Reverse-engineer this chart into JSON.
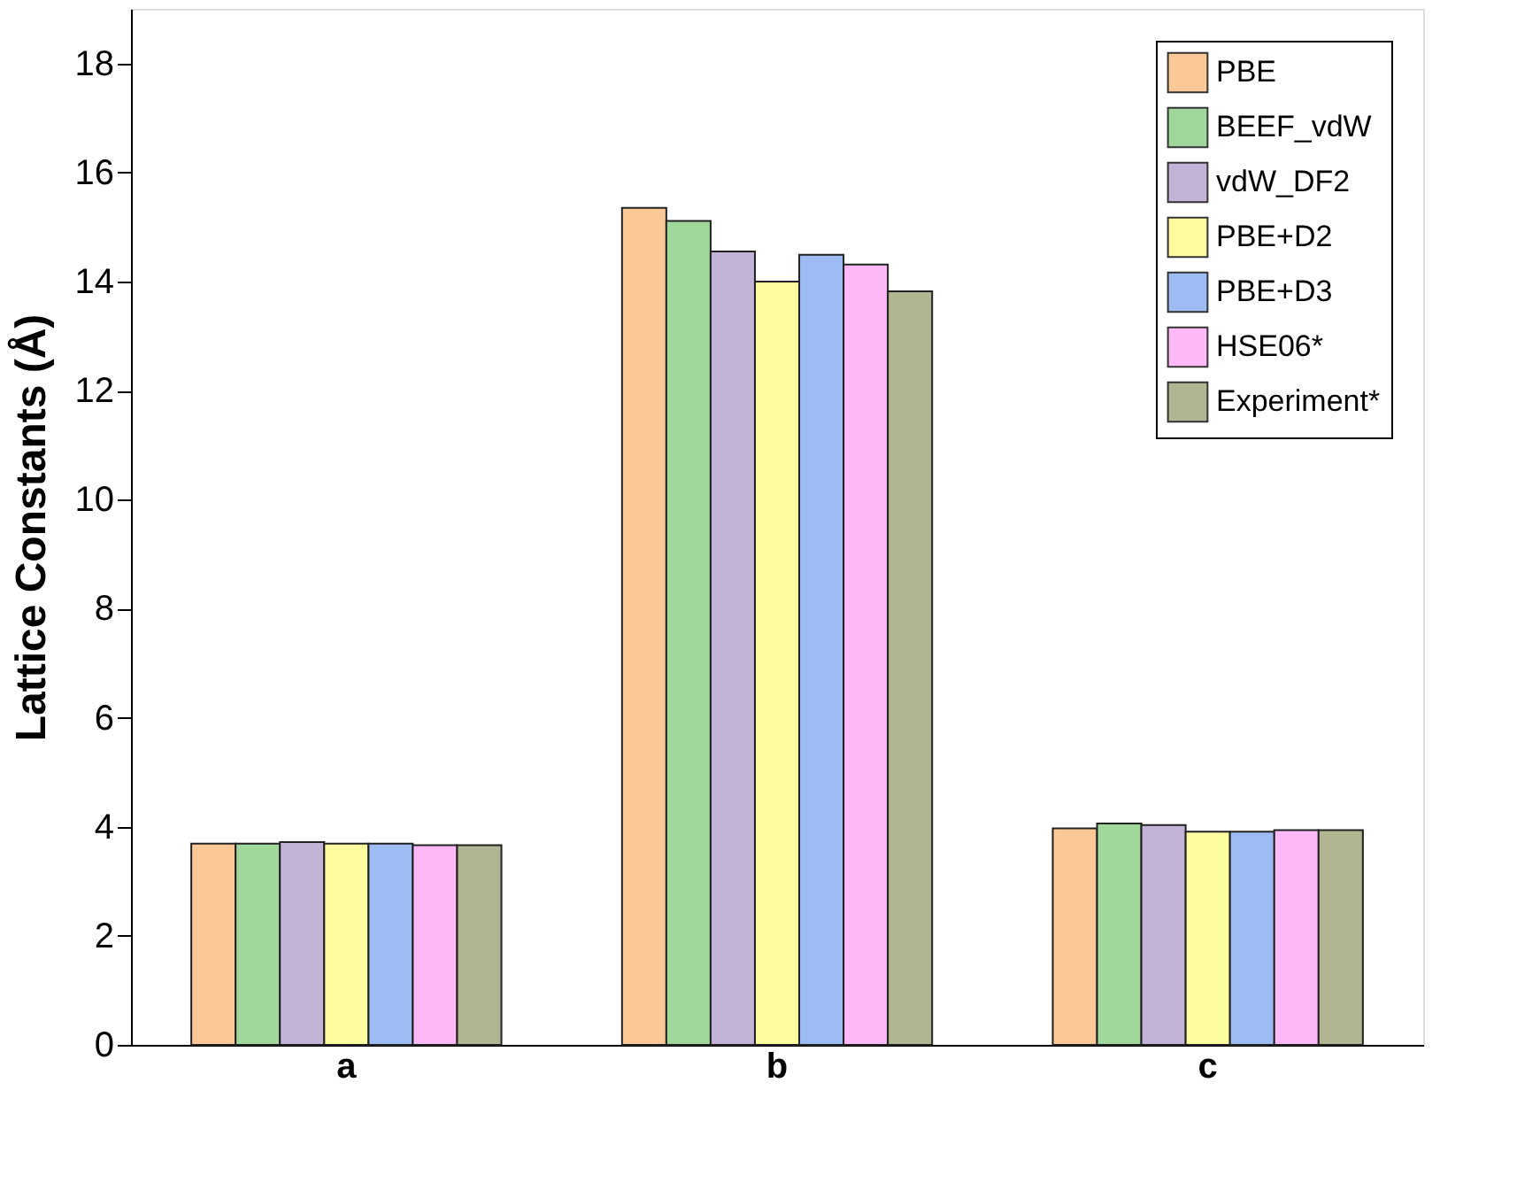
{
  "chart_data": {
    "type": "bar",
    "ylabel": "Lattice Constants (Å)",
    "categories": [
      "a",
      "b",
      "c"
    ],
    "series": [
      {
        "name": "PBE",
        "color": "#fcc895",
        "values": [
          3.69,
          15.35,
          3.97
        ]
      },
      {
        "name": "BEEF_vdW",
        "color": "#a0d89c",
        "values": [
          3.69,
          15.11,
          4.06
        ]
      },
      {
        "name": "vdW_DF2",
        "color": "#c3b3d7",
        "values": [
          3.72,
          14.55,
          4.03
        ]
      },
      {
        "name": "PBE+D2",
        "color": "#fdfc9e",
        "values": [
          3.69,
          14.0,
          3.91
        ]
      },
      {
        "name": "PBE+D3",
        "color": "#9dbcf4",
        "values": [
          3.69,
          14.49,
          3.91
        ]
      },
      {
        "name": "HSE06*",
        "color": "#fcb8f7",
        "values": [
          3.66,
          14.31,
          3.94
        ]
      },
      {
        "name": "Experiment*",
        "color": "#b1b592",
        "values": [
          3.66,
          13.82,
          3.94
        ]
      }
    ],
    "ylim": [
      0,
      19
    ],
    "yticks": [
      0,
      2,
      4,
      6,
      8,
      10,
      12,
      14,
      16,
      18
    ],
    "grid": false,
    "legend": "top right"
  }
}
